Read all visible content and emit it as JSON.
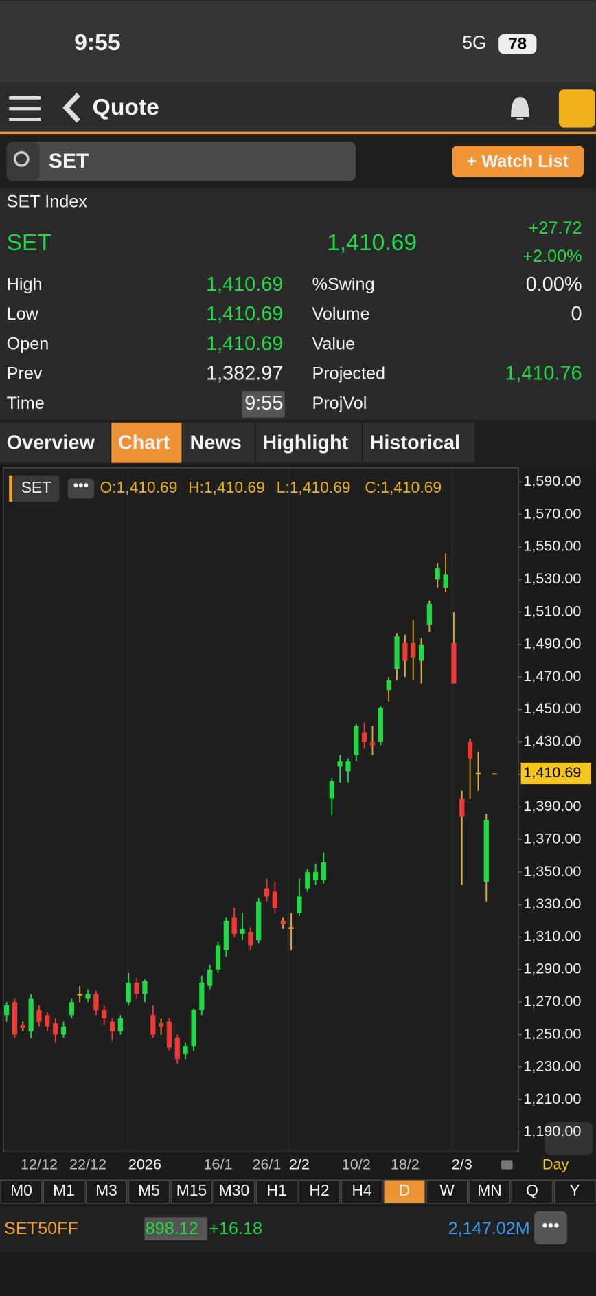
{
  "status": {
    "time": "9:55",
    "network": "5G",
    "battery": "78"
  },
  "header": {
    "title": "Quote"
  },
  "search": {
    "query": "SET",
    "watch_button": "+ Watch List"
  },
  "quote": {
    "name": "SET Index",
    "symbol": "SET",
    "last": "1,410.69",
    "change": "+27.72",
    "change_pct": "+2.00%"
  },
  "stats_left": [
    {
      "label": "High",
      "value": "1,410.69"
    },
    {
      "label": "Low",
      "value": "1,410.69"
    },
    {
      "label": "Open",
      "value": "1,410.69"
    },
    {
      "label": "Prev",
      "value": "1,382.97"
    },
    {
      "label": "Time",
      "value": "9:55"
    }
  ],
  "stats_right": [
    {
      "label": "%Swing",
      "value": "0.00%"
    },
    {
      "label": "Volume",
      "value": "0"
    },
    {
      "label": "Value"
    },
    {
      "label": "Projected",
      "value": "1,410.76"
    },
    {
      "label": "ProjVol"
    }
  ],
  "tabs": [
    "Overview",
    "Chart",
    "News",
    "Highlight",
    "Historical"
  ],
  "timeframes": [
    "M0",
    "M1",
    "M3",
    "M5",
    "M15",
    "M30",
    "H1",
    "H2",
    "H4",
    "D",
    "W",
    "MN",
    "Q",
    "Y"
  ],
  "ticker": {
    "symbol": "SET50FF",
    "price": "898.12",
    "change": "+16.18",
    "value": "2,147.02M"
  },
  "chart_data": {
    "type": "candlestick",
    "symbol": "SET",
    "legend": [
      "O:1,410.69",
      "H:1,410.69",
      "L:1,410.69",
      "C:1,410.69"
    ],
    "period": "Day",
    "up_color": "#22d844",
    "down_color": "#ee3b35",
    "categories": [
      null,
      null,
      null,
      null,
      "12/12",
      null,
      null,
      null,
      null,
      null,
      "22/12",
      null,
      null,
      null,
      null,
      null,
      null,
      "2026",
      null,
      null,
      null,
      null,
      null,
      null,
      null,
      null,
      "16/1",
      null,
      null,
      null,
      null,
      null,
      "26/1",
      null,
      null,
      null,
      "2/2",
      null,
      null,
      null,
      null,
      null,
      null,
      "10/2",
      null,
      null,
      null,
      null,
      null,
      "18/2",
      null,
      null,
      null,
      null,
      null,
      null,
      "2/3",
      null,
      null,
      null,
      null
    ],
    "ohlc": [
      [
        1262,
        1270,
        1258,
        1268
      ],
      [
        1270,
        1272,
        1248,
        1250
      ],
      [
        1256,
        1258,
        1252,
        1254
      ],
      [
        1252,
        1275,
        1248,
        1272
      ],
      [
        1265,
        1268,
        1255,
        1258
      ],
      [
        1262,
        1264,
        1252,
        1255
      ],
      [
        1257,
        1260,
        1245,
        1250
      ],
      [
        1250,
        1258,
        1248,
        1255
      ],
      [
        1262,
        1272,
        1260,
        1270
      ],
      [
        1274,
        1280,
        1270,
        1275
      ],
      [
        1272,
        1278,
        1270,
        1275
      ],
      [
        1275,
        1277,
        1262,
        1265
      ],
      [
        1265,
        1268,
        1256,
        1260
      ],
      [
        1258,
        1260,
        1246,
        1252
      ],
      [
        1252,
        1262,
        1250,
        1260
      ],
      [
        1270,
        1288,
        1268,
        1282
      ],
      [
        1282,
        1285,
        1272,
        1275
      ],
      [
        1275,
        1284,
        1270,
        1283
      ],
      [
        1262,
        1268,
        1248,
        1250
      ],
      [
        1257,
        1260,
        1250,
        1255
      ],
      [
        1258,
        1260,
        1240,
        1242
      ],
      [
        1248,
        1250,
        1232,
        1235
      ],
      [
        1238,
        1245,
        1235,
        1243
      ],
      [
        1243,
        1266,
        1240,
        1265
      ],
      [
        1265,
        1286,
        1262,
        1282
      ],
      [
        1280,
        1293,
        1278,
        1290
      ],
      [
        1290,
        1307,
        1288,
        1305
      ],
      [
        1302,
        1322,
        1298,
        1320
      ],
      [
        1322,
        1328,
        1310,
        1312
      ],
      [
        1312,
        1325,
        1308,
        1315
      ],
      [
        1313,
        1316,
        1302,
        1305
      ],
      [
        1308,
        1334,
        1306,
        1332
      ],
      [
        1340,
        1346,
        1332,
        1335
      ],
      [
        1338,
        1344,
        1325,
        1328
      ],
      [
        1320,
        1322,
        1315,
        1318
      ],
      [
        1316,
        1325,
        1302,
        1315
      ],
      [
        1325,
        1346,
        1323,
        1335
      ],
      [
        1340,
        1352,
        1338,
        1350
      ],
      [
        1345,
        1355,
        1342,
        1350
      ],
      [
        1345,
        1362,
        1343,
        1356
      ],
      [
        1395,
        1408,
        1385,
        1406
      ],
      [
        1415,
        1422,
        1405,
        1418
      ],
      [
        1412,
        1420,
        1405,
        1418
      ],
      [
        1422,
        1441,
        1418,
        1440
      ],
      [
        1436,
        1442,
        1426,
        1430
      ],
      [
        1430,
        1440,
        1422,
        1428
      ],
      [
        1430,
        1452,
        1428,
        1451
      ],
      [
        1462,
        1470,
        1455,
        1468
      ],
      [
        1475,
        1497,
        1468,
        1495
      ],
      [
        1491,
        1496,
        1470,
        1480
      ],
      [
        1491,
        1505,
        1468,
        1482
      ],
      [
        1480,
        1494,
        1466,
        1490
      ],
      [
        1502,
        1517,
        1498,
        1515
      ],
      [
        1530,
        1540,
        1525,
        1537
      ],
      [
        1525,
        1546,
        1522,
        1533
      ],
      [
        1491,
        1510,
        1466,
        1466
      ],
      [
        1395,
        1400,
        1342,
        1384
      ],
      [
        1430,
        1432,
        1395,
        1420
      ],
      [
        1410,
        1424,
        1400,
        1411
      ],
      [
        1344,
        1386,
        1332,
        1382
      ],
      [
        1410.69,
        1410.69,
        1410.69,
        1410.69
      ]
    ],
    "ylim": [
      1190,
      1590
    ],
    "yticks": [
      {
        "value": 1590,
        "label": "1,590.00"
      },
      {
        "value": 1570,
        "label": "1,570.00"
      },
      {
        "value": 1550,
        "label": "1,550.00"
      },
      {
        "value": 1530,
        "label": "1,530.00"
      },
      {
        "value": 1510,
        "label": "1,510.00"
      },
      {
        "value": 1490,
        "label": "1,490.00"
      },
      {
        "value": 1470,
        "label": "1,470.00"
      },
      {
        "value": 1450,
        "label": "1,450.00"
      },
      {
        "value": 1430,
        "label": "1,430.00"
      },
      {
        "value": 1410,
        "label": "1,410.00"
      },
      {
        "value": 1390,
        "label": "1,390.00"
      },
      {
        "value": 1370,
        "label": "1,370.00"
      },
      {
        "value": 1350,
        "label": "1,350.00"
      },
      {
        "value": 1330,
        "label": "1,330.00"
      },
      {
        "value": 1310,
        "label": "1,310.00"
      },
      {
        "value": 1290,
        "label": "1,290.00"
      },
      {
        "value": 1270,
        "label": "1,270.00"
      },
      {
        "value": 1250,
        "label": "1,250.00"
      },
      {
        "value": 1230,
        "label": "1,230.00"
      },
      {
        "value": 1210,
        "label": "1,210.00"
      },
      {
        "value": 1190,
        "label": "1,190.00"
      }
    ],
    "last_price": {
      "value": 1410.69,
      "label": "1,410.69"
    }
  }
}
